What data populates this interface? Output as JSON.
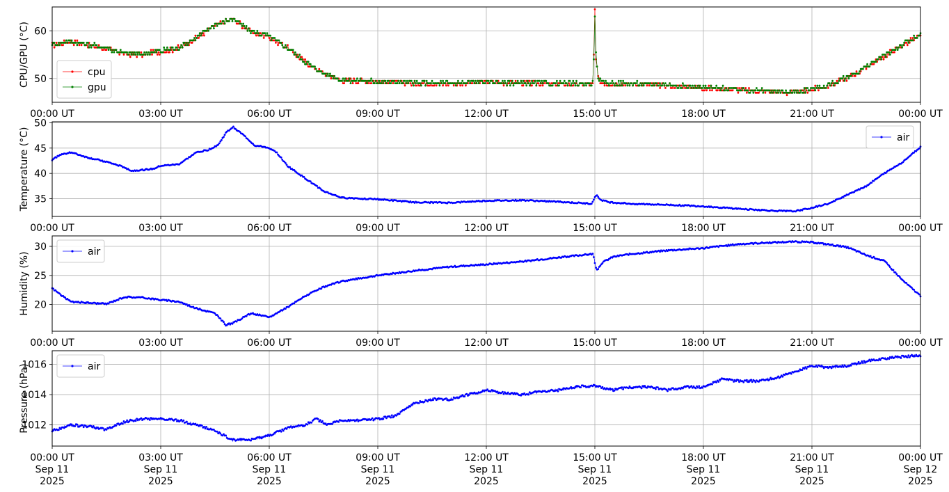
{
  "x_ticks": {
    "labels": [
      "00:00 UT",
      "03:00 UT",
      "06:00 UT",
      "09:00 UT",
      "12:00 UT",
      "15:00 UT",
      "18:00 UT",
      "21:00 UT",
      "00:00 UT"
    ],
    "dates": [
      "Sep 11",
      "Sep 11",
      "Sep 11",
      "Sep 11",
      "Sep 11",
      "Sep 11",
      "Sep 11",
      "Sep 11",
      "Sep 12"
    ],
    "years": [
      "2025",
      "2025",
      "2025",
      "2025",
      "2025",
      "2025",
      "2025",
      "2025",
      "2025"
    ]
  },
  "chart_data": [
    {
      "type": "scatter",
      "ylabel": "CPU/GPU (°C)",
      "xlim": [
        0,
        24
      ],
      "ylim": [
        45,
        65
      ],
      "yticks": [
        50,
        60
      ],
      "grid": true,
      "legend_position": "lower-left",
      "series": [
        {
          "name": "cpu",
          "color": "#ff0000",
          "x": [
            0,
            0.5,
            1,
            1.5,
            2,
            2.5,
            3,
            3.5,
            4,
            4.5,
            5,
            5.5,
            6,
            6.5,
            7,
            7.5,
            8,
            9,
            10,
            11,
            12,
            13,
            14,
            14.95,
            15.0,
            15.03,
            15.1,
            15.3,
            16,
            17,
            18,
            19,
            20,
            20.5,
            21,
            21.5,
            22,
            22.5,
            23,
            23.5,
            24
          ],
          "y": [
            57,
            57.8,
            57,
            56.3,
            55.2,
            55,
            55.7,
            56.4,
            58.5,
            61.2,
            62.4,
            59.8,
            58.7,
            56.5,
            53.4,
            51,
            49.6,
            49.3,
            49,
            48.9,
            49.2,
            49,
            48.8,
            48.8,
            64.2,
            54,
            49.4,
            49,
            48.8,
            48.5,
            48,
            47.6,
            47.2,
            47,
            47.7,
            48.6,
            50.2,
            52.3,
            54.7,
            57,
            59
          ]
        },
        {
          "name": "gpu",
          "color": "#008000",
          "x": [
            0,
            0.5,
            1,
            1.5,
            2,
            2.5,
            3,
            3.5,
            4,
            4.5,
            5,
            5.5,
            6,
            6.5,
            7,
            7.5,
            8,
            9,
            10,
            11,
            12,
            13,
            14,
            14.95,
            15.0,
            15.03,
            15.1,
            15.3,
            16,
            17,
            18,
            19,
            20,
            20.5,
            21,
            21.5,
            22,
            22.5,
            23,
            23.5,
            24
          ],
          "y": [
            57.2,
            57.9,
            57.1,
            56.4,
            55.3,
            55.1,
            55.8,
            56.5,
            58.6,
            61.3,
            62.5,
            59.9,
            58.8,
            56.6,
            53.5,
            51.1,
            49.7,
            49.4,
            49.1,
            49,
            49.3,
            49.1,
            48.9,
            48.9,
            62.8,
            55,
            49.5,
            49.1,
            48.9,
            48.6,
            48.1,
            47.7,
            47.3,
            47.1,
            47.8,
            48.7,
            50.3,
            52.4,
            54.8,
            57.1,
            59.1
          ]
        }
      ]
    },
    {
      "type": "scatter",
      "ylabel": "Temperature (°C)",
      "xlim": [
        0,
        24
      ],
      "ylim": [
        31.5,
        50.2
      ],
      "yticks": [
        35,
        40,
        45,
        50
      ],
      "grid": true,
      "legend_position": "upper-right",
      "series": [
        {
          "name": "air",
          "color": "#0000ff",
          "x": [
            0,
            0.2,
            0.5,
            1,
            1.5,
            2,
            2.2,
            2.5,
            2.8,
            3,
            3.5,
            4,
            4.3,
            4.6,
            4.8,
            5,
            5.3,
            5.6,
            5.9,
            6.2,
            6.5,
            7,
            7.5,
            8,
            9,
            10,
            11,
            12,
            13,
            14,
            14.9,
            15.05,
            15.15,
            15.4,
            16,
            17,
            18,
            19,
            19.5,
            20,
            20.5,
            21,
            21.5,
            22,
            22.5,
            23,
            23.5,
            24
          ],
          "y": [
            42.7,
            43.6,
            44.2,
            43.1,
            42.3,
            41.2,
            40.5,
            40.7,
            40.9,
            41.5,
            41.8,
            44.2,
            44.6,
            45.7,
            48,
            49.2,
            47.5,
            45.5,
            45.2,
            44.2,
            41.5,
            39,
            36.5,
            35.2,
            34.9,
            34.3,
            34.2,
            34.6,
            34.7,
            34.4,
            34,
            35.8,
            34.8,
            34.3,
            34,
            33.8,
            33.5,
            33,
            32.8,
            32.6,
            32.5,
            33.2,
            34.1,
            35.9,
            37.5,
            40,
            42.2,
            45.2
          ]
        }
      ]
    },
    {
      "type": "scatter",
      "ylabel": "Humidity (%)",
      "xlim": [
        0,
        24
      ],
      "ylim": [
        15.4,
        31.8
      ],
      "yticks": [
        20,
        25,
        30
      ],
      "grid": true,
      "legend_position": "upper-left",
      "series": [
        {
          "name": "air",
          "color": "#0000ff",
          "x": [
            0,
            0.3,
            0.5,
            1,
            1.5,
            2,
            2.5,
            3,
            3.5,
            4,
            4.5,
            4.8,
            5,
            5.5,
            6,
            6.5,
            7,
            7.5,
            8,
            9,
            10,
            11,
            12,
            13,
            14,
            14.95,
            15.05,
            15.2,
            15.5,
            16,
            17,
            18,
            19,
            20,
            20.5,
            21,
            21.5,
            22,
            22.5,
            23,
            23.5,
            24
          ],
          "y": [
            22.8,
            21.4,
            20.5,
            20.3,
            20.1,
            21.3,
            21.2,
            20.8,
            20.5,
            19.3,
            18.5,
            16.5,
            16.8,
            18.5,
            17.8,
            19.5,
            21.5,
            23,
            24,
            25,
            25.8,
            26.5,
            26.9,
            27.4,
            28.1,
            28.7,
            25.8,
            27.2,
            28.2,
            28.7,
            29.3,
            29.7,
            30.4,
            30.7,
            30.8,
            30.7,
            30.3,
            29.8,
            28.5,
            27.5,
            24.2,
            21.5
          ]
        }
      ]
    },
    {
      "type": "scatter",
      "ylabel": "Pressure (hPa)",
      "xlim": [
        0,
        24
      ],
      "ylim": [
        1010.6,
        1016.9
      ],
      "yticks": [
        1012,
        1014,
        1016
      ],
      "grid": true,
      "legend_position": "upper-left",
      "series": [
        {
          "name": "air",
          "color": "#0000ff",
          "x": [
            0,
            0.5,
            1,
            1.5,
            2,
            2.5,
            3,
            3.5,
            4,
            4.5,
            5,
            5.5,
            6,
            6.5,
            7,
            7.3,
            7.6,
            8,
            8.5,
            9,
            9.5,
            10,
            10.5,
            11,
            11.5,
            12,
            12.5,
            13,
            13.5,
            14,
            14.5,
            15,
            15.5,
            16,
            16.5,
            17,
            17.5,
            18,
            18.5,
            19,
            19.5,
            20,
            20.5,
            21,
            21.5,
            22,
            22.5,
            23,
            23.5,
            24
          ],
          "y": [
            1011.6,
            1012,
            1011.9,
            1011.7,
            1012.2,
            1012.4,
            1012.4,
            1012.3,
            1012,
            1011.6,
            1011,
            1011,
            1011.3,
            1011.8,
            1012,
            1012.4,
            1012,
            1012.3,
            1012.3,
            1012.4,
            1012.6,
            1013.4,
            1013.7,
            1013.7,
            1014,
            1014.3,
            1014.1,
            1014,
            1014.2,
            1014.3,
            1014.5,
            1014.6,
            1014.3,
            1014.5,
            1014.5,
            1014.3,
            1014.5,
            1014.5,
            1015,
            1014.9,
            1014.9,
            1015.1,
            1015.5,
            1015.9,
            1015.8,
            1015.9,
            1016.2,
            1016.4,
            1016.5,
            1016.6
          ]
        }
      ]
    }
  ]
}
